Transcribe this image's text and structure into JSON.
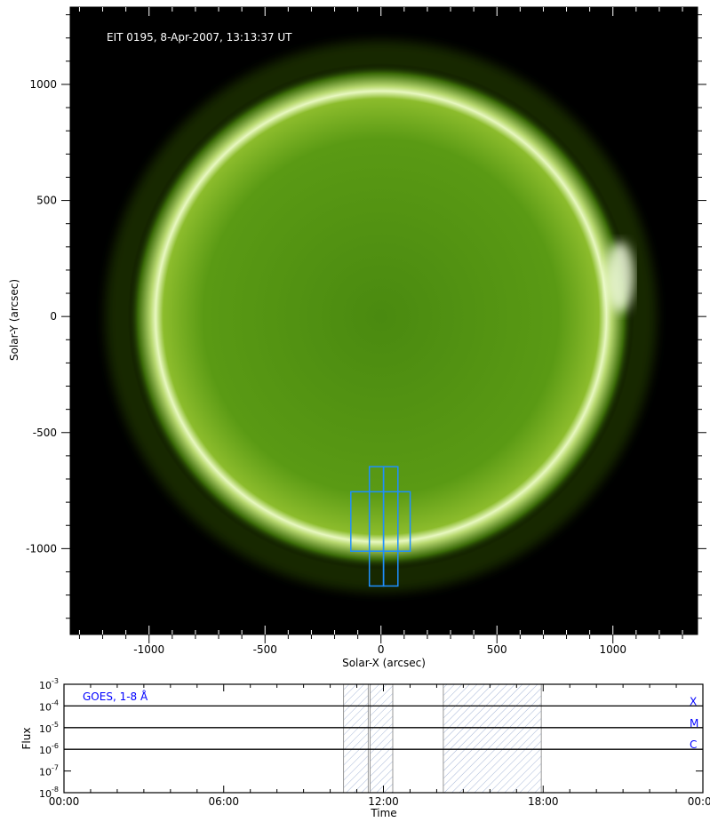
{
  "chart_data": [
    {
      "type": "heatmap",
      "title": "EIT 0195, 8-Apr-2007, 13:13:37 UT",
      "xlabel": "Solar-X (arcsec)",
      "ylabel": "Solar-Y (arcsec)",
      "xlim": [
        -1340,
        1365
      ],
      "ylim": [
        -1370,
        1333
      ],
      "xticks": [
        -1000,
        -500,
        0,
        500,
        1000
      ],
      "xtick_labels": [
        "-1000",
        "-500",
        "0",
        "500",
        "1000"
      ],
      "yticks": [
        -1000,
        -500,
        0,
        500,
        1000
      ],
      "ytick_labels": [
        "-1000",
        "-500",
        "0",
        "500",
        "1000"
      ],
      "colormap": [
        "#000000",
        "#2a5a00",
        "#6a9a10",
        "#c8e070",
        "#ffffff"
      ],
      "solar_radius_arcsec": 975,
      "box_color": "#1e8fff",
      "boxes": [
        {
          "x0": -130,
          "x1": 126,
          "y0": -1011,
          "y1": -755
        },
        {
          "x0": -50,
          "x1": 11,
          "y0": -1161,
          "y1": -647
        },
        {
          "x0": 11,
          "x1": 73,
          "y0": -1161,
          "y1": -647
        }
      ]
    },
    {
      "type": "line",
      "legend": "GOES, 1-8 Å",
      "xlabel": "Time",
      "ylabel": "Flux",
      "xlim_hours": [
        0,
        24
      ],
      "xticks": [
        "00:00",
        "06:00",
        "12:00",
        "18:00",
        "00:00"
      ],
      "ylim": [
        1e-08,
        0.001
      ],
      "yscale": "log",
      "ytick_labels": [
        {
          "base": "10",
          "exp": "-3"
        },
        {
          "base": "10",
          "exp": "-4"
        },
        {
          "base": "10",
          "exp": "-5"
        },
        {
          "base": "10",
          "exp": "-6"
        },
        {
          "base": "10",
          "exp": "-7"
        },
        {
          "base": "10",
          "exp": "-8"
        }
      ],
      "flare_class_lines": [
        {
          "label": "X",
          "value": 0.0001
        },
        {
          "label": "M",
          "value": 1e-05
        },
        {
          "label": "C",
          "value": 1e-06
        }
      ],
      "label_color": "#0000ff",
      "hatched_intervals_hours": [
        [
          10.5,
          11.43
        ],
        [
          11.5,
          12.35
        ],
        [
          14.25,
          17.93
        ]
      ],
      "hatch_color": "#a8b8d8"
    }
  ]
}
